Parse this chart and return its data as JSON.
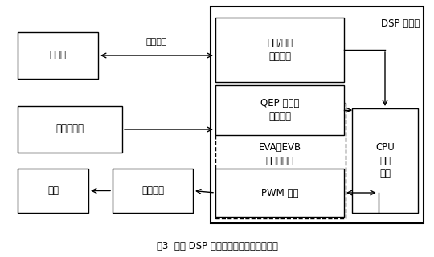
{
  "title": "图3  基于 DSP 事件管理器的转台位置控制",
  "background_color": "#ffffff",
  "dsp_label": "DSP 处理器",
  "arrow_label": "指令位置",
  "labels": {
    "shangweiji": "上位机",
    "guangdian": "光电编码器",
    "dianji": "电机",
    "shuzi": "数字功放",
    "shuchuang": "串行/并行\n数据总线",
    "qep": "QEP 电路和\n捕获单元",
    "eva": "EVA、EVB\n事件管理器",
    "pwm": "PWM 模块",
    "cpu": "CPU\n校正\n计算"
  },
  "fig_width": 5.4,
  "fig_height": 3.2,
  "dpi": 100
}
